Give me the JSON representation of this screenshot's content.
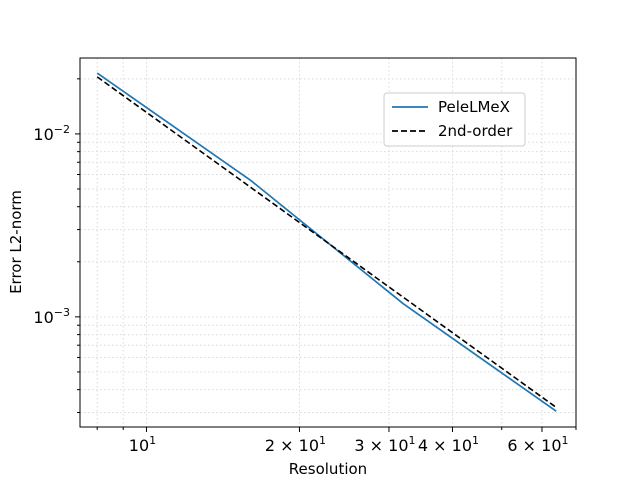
{
  "chart_data": {
    "type": "line",
    "xlabel": "Resolution",
    "ylabel": "Error L2-norm",
    "xscale": "log",
    "yscale": "log",
    "xlim": [
      7.4,
      70
    ],
    "ylim": [
      0.00025,
      0.026
    ],
    "grid": true,
    "legend_position": "upper-right",
    "x_ticks": [
      {
        "value": 10,
        "base": "10",
        "exp": "1"
      },
      {
        "value": 20,
        "base": "2 × 10",
        "exp": "1"
      },
      {
        "value": 30,
        "base": "3 × 10",
        "exp": "1"
      },
      {
        "value": 40,
        "base": "4 × 10",
        "exp": "1"
      },
      {
        "value": 60,
        "base": "6 × 10",
        "exp": "1"
      }
    ],
    "y_ticks": [
      {
        "value": 0.01,
        "base": "10",
        "exp": "−2"
      },
      {
        "value": 0.001,
        "base": "10",
        "exp": "−3"
      }
    ],
    "series": [
      {
        "name": "PeleLMeX",
        "color": "#1f77b4",
        "dash": "solid",
        "x": [
          8,
          16,
          32,
          64
        ],
        "y": [
          0.0215,
          0.0056,
          0.00118,
          0.000305
        ]
      },
      {
        "name": "2nd-order",
        "color": "#000000",
        "dash": "dashed",
        "x": [
          8,
          16,
          32,
          64
        ],
        "y": [
          0.0205,
          0.005125,
          0.00128,
          0.00032
        ]
      }
    ]
  }
}
